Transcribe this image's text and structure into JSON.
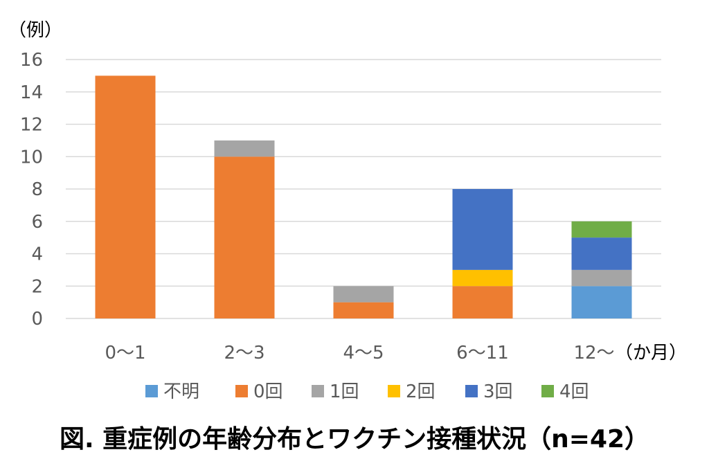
{
  "chart_data": {
    "type": "bar",
    "stacked": true,
    "title": "図. 重症例の年齢分布とワクチン接種状況（n=42）",
    "ylabel": "（例）",
    "x_unit_label": "（か月）",
    "categories": [
      "0〜1",
      "2〜3",
      "4〜5",
      "6〜11",
      "12〜"
    ],
    "ylim": [
      0,
      16
    ],
    "yticks": [
      0,
      2,
      4,
      6,
      8,
      10,
      12,
      14,
      16
    ],
    "grid": true,
    "legend_position": "bottom",
    "series": [
      {
        "name": "不明",
        "color": "#5B9BD5",
        "values": [
          0,
          0,
          0,
          0,
          2
        ]
      },
      {
        "name": "0回",
        "color": "#ED7D31",
        "values": [
          15,
          10,
          1,
          2,
          0
        ]
      },
      {
        "name": "1回",
        "color": "#A5A5A5",
        "values": [
          0,
          1,
          1,
          0,
          1
        ]
      },
      {
        "name": "2回",
        "color": "#FFC000",
        "values": [
          0,
          0,
          0,
          1,
          0
        ]
      },
      {
        "name": "3回",
        "color": "#4472C4",
        "values": [
          0,
          0,
          0,
          5,
          2
        ]
      },
      {
        "name": "4回",
        "color": "#70AD47",
        "values": [
          0,
          0,
          0,
          0,
          1
        ]
      }
    ]
  }
}
